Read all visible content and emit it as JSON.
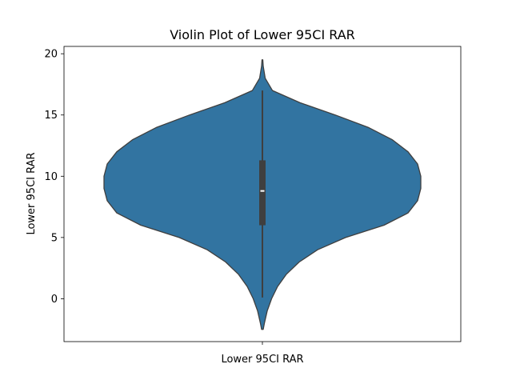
{
  "chart_data": {
    "type": "violin",
    "title": "Violin Plot of Lower 95CI RAR",
    "xlabel": "Lower 95CI RAR",
    "ylabel": "Lower 95CI RAR",
    "categories": [
      "Lower 95CI RAR"
    ],
    "ylim": [
      -3.5,
      20.6
    ],
    "yticks": [
      0,
      5,
      10,
      15,
      20
    ],
    "grid": false,
    "color": "#3274a1",
    "box": {
      "min": 0.1,
      "q1": 6.0,
      "median": 8.8,
      "q3": 11.3,
      "max": 17.0
    },
    "density": {
      "y": [
        19.5,
        19.0,
        18.0,
        17.0,
        16.0,
        15.0,
        14.0,
        13.0,
        12.0,
        11.0,
        10.0,
        9.0,
        8.0,
        7.0,
        6.0,
        5.0,
        4.0,
        3.0,
        2.0,
        1.0,
        0.0,
        -1.0,
        -2.0,
        -2.5
      ],
      "halfwidth": [
        0.5,
        1.0,
        3.5,
        12.5,
        47.0,
        91.0,
        132.0,
        162.0,
        182.0,
        194.0,
        198.0,
        198.0,
        194.0,
        182.0,
        152.0,
        104.0,
        69.0,
        46.0,
        30.0,
        19.0,
        11.5,
        6.0,
        2.5,
        1.0
      ]
    }
  }
}
